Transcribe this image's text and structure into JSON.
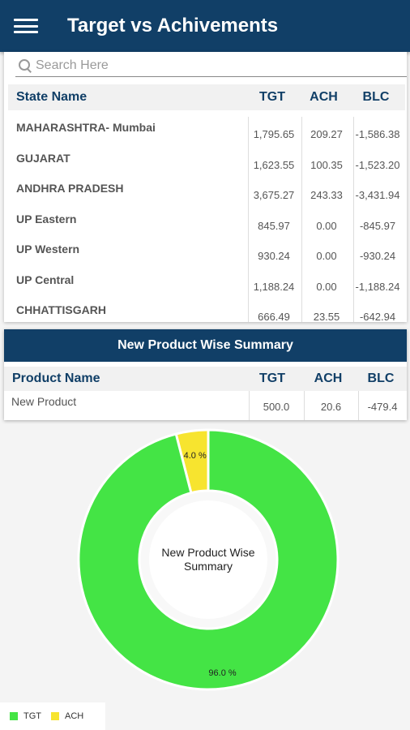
{
  "app_bar": {
    "title": "Target vs Achivements",
    "menu_icon": "hamburger-menu-icon"
  },
  "search": {
    "placeholder": "Search Here",
    "value": ""
  },
  "state_table": {
    "headers": [
      "State Name",
      "TGT",
      "ACH",
      "BLC"
    ],
    "rows": [
      {
        "name": "MAHARASHTRA- Mumbai",
        "tgt": "1,795.65",
        "ach": "209.27",
        "blc": "-1,586.38"
      },
      {
        "name": "GUJARAT",
        "tgt": "1,623.55",
        "ach": "100.35",
        "blc": "-1,523.20"
      },
      {
        "name": "ANDHRA PRADESH",
        "tgt": "3,675.27",
        "ach": "243.33",
        "blc": "-3,431.94"
      },
      {
        "name": "UP Eastern",
        "tgt": "845.97",
        "ach": "0.00",
        "blc": "-845.97"
      },
      {
        "name": "UP Western",
        "tgt": "930.24",
        "ach": "0.00",
        "blc": "-930.24"
      },
      {
        "name": "UP Central",
        "tgt": "1,188.24",
        "ach": "0.00",
        "blc": "-1,188.24"
      },
      {
        "name": "CHHATTISGARH",
        "tgt": "666.49",
        "ach": "23.55",
        "blc": "-642.94"
      }
    ]
  },
  "product_summary": {
    "title": "New Product Wise Summary",
    "headers": [
      "Product Name",
      "TGT",
      "ACH",
      "BLC"
    ],
    "rows": [
      {
        "name": "New Product",
        "tgt": "500.0",
        "ach": "20.6",
        "blc": "-479.4"
      }
    ]
  },
  "chart_data": {
    "type": "pie",
    "center_text": [
      "New Product Wise",
      "Summary"
    ],
    "slices": [
      {
        "label": "TGT",
        "value": 96.0,
        "display": "96.0 %",
        "color": "#44e445"
      },
      {
        "label": "ACH",
        "value": 4.0,
        "display": "4.0 %",
        "color": "#f7e42f"
      }
    ],
    "legend": {
      "position": "bottom-left",
      "items": [
        "TGT",
        "ACH"
      ]
    }
  },
  "colors": {
    "primary": "#113f67",
    "tgt_green": "#44e445",
    "ach_yellow": "#f7e42f"
  }
}
